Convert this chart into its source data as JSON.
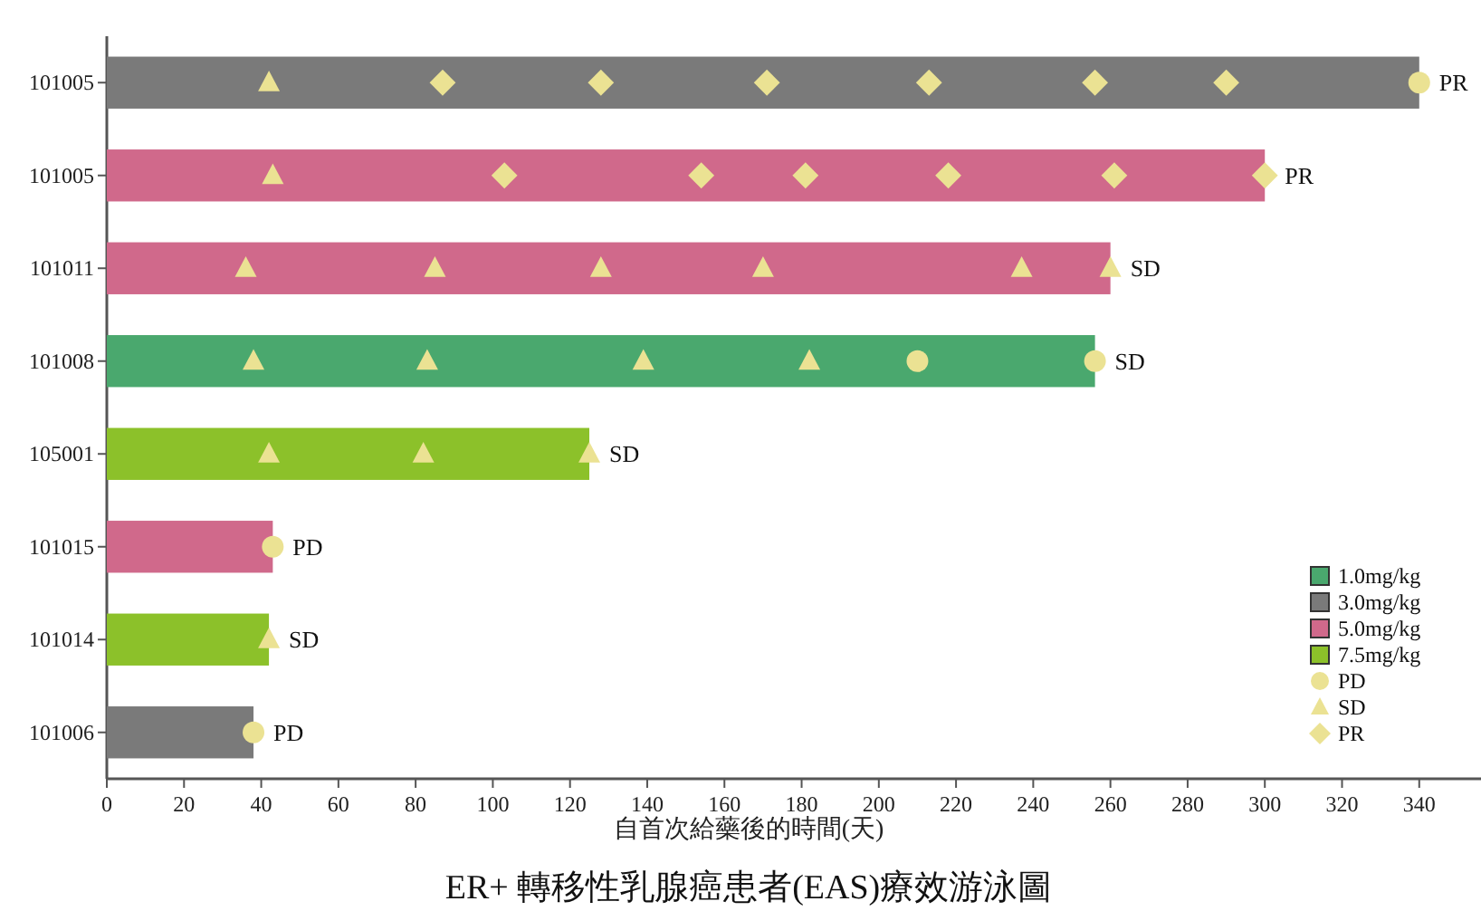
{
  "chart_data": {
    "type": "bar",
    "orientation": "horizontal",
    "title": "ER+ 轉移性乳腺癌患者(EAS)療效游泳圖",
    "xlabel": "自首次給藥後的時間(天)",
    "categories": [
      "101005",
      "101005",
      "101011",
      "101008",
      "105001",
      "101015",
      "101014",
      "101006"
    ],
    "xlim": [
      0,
      356
    ],
    "xticks": [
      0,
      20,
      40,
      60,
      80,
      100,
      120,
      140,
      160,
      180,
      200,
      220,
      240,
      260,
      280,
      300,
      320,
      340
    ],
    "grid": false,
    "legend": "bottom right",
    "series": [
      {
        "name": "1.0mg/kg",
        "color": "#4aa86e",
        "values": [
          null,
          null,
          null,
          256,
          null,
          null,
          null,
          null
        ],
        "value_labels": [
          null,
          null,
          null,
          "SD",
          null,
          null,
          null,
          null
        ]
      },
      {
        "name": "3.0mg/kg",
        "color": "#7a7a7a",
        "values": [
          340,
          null,
          null,
          null,
          null,
          null,
          null,
          38
        ],
        "value_labels": [
          "PR",
          null,
          null,
          null,
          null,
          null,
          null,
          "PD"
        ]
      },
      {
        "name": "5.0mg/kg",
        "color": "#d0698b",
        "values": [
          null,
          300,
          260,
          null,
          null,
          43,
          null,
          null
        ],
        "value_labels": [
          null,
          "PR",
          "SD",
          null,
          null,
          "PD",
          null,
          null
        ]
      },
      {
        "name": "7.5mg/kg",
        "color": "#8cc12a",
        "values": [
          null,
          null,
          null,
          null,
          125,
          null,
          42,
          null
        ],
        "value_labels": [
          null,
          null,
          null,
          null,
          "SD",
          null,
          "SD",
          null
        ]
      },
      {
        "name": "PD",
        "type": "scatter",
        "marker": "circle",
        "color": "#ebe293",
        "values": [
          340,
          null,
          null,
          210,
          null,
          43,
          null,
          38
        ]
      },
      {
        "type": "scatter",
        "marker": "circle",
        "color": "#ebe293",
        "values": [
          null,
          null,
          null,
          256,
          null,
          null,
          null,
          null
        ]
      },
      {
        "name": "SD",
        "type": "scatter",
        "marker": "triangle",
        "color": "#ebe293",
        "values": [
          42,
          43,
          36,
          38,
          42,
          null,
          42,
          null
        ]
      },
      {
        "type": "scatter",
        "marker": "triangle",
        "color": "#ebe293",
        "values": [
          null,
          null,
          85,
          83,
          82,
          null,
          null,
          null
        ]
      },
      {
        "type": "scatter",
        "marker": "triangle",
        "color": "#ebe293",
        "values": [
          null,
          null,
          128,
          139,
          125,
          null,
          null,
          null
        ]
      },
      {
        "type": "scatter",
        "marker": "triangle",
        "color": "#ebe293",
        "values": [
          null,
          null,
          170,
          182,
          null,
          null,
          null,
          null
        ]
      },
      {
        "type": "scatter",
        "marker": "triangle",
        "color": "#ebe293",
        "values": [
          null,
          null,
          237,
          null,
          null,
          null,
          null,
          null
        ]
      },
      {
        "type": "scatter",
        "marker": "triangle",
        "color": "#ebe293",
        "values": [
          null,
          null,
          260,
          null,
          null,
          null,
          null,
          null
        ]
      },
      {
        "name": "PR",
        "type": "scatter",
        "marker": "diamond",
        "color": "#ebe293",
        "values": [
          87,
          103,
          null,
          null,
          null,
          null,
          null,
          null
        ]
      },
      {
        "type": "scatter",
        "marker": "diamond",
        "color": "#ebe293",
        "values": [
          128,
          154,
          null,
          null,
          null,
          null,
          null,
          null
        ]
      },
      {
        "type": "scatter",
        "marker": "diamond",
        "color": "#ebe293",
        "values": [
          171,
          181,
          null,
          null,
          null,
          null,
          null,
          null
        ]
      },
      {
        "type": "scatter",
        "marker": "diamond",
        "color": "#ebe293",
        "values": [
          213,
          218,
          null,
          null,
          null,
          null,
          null,
          null
        ]
      },
      {
        "type": "scatter",
        "marker": "diamond",
        "color": "#ebe293",
        "values": [
          256,
          261,
          null,
          null,
          null,
          null,
          null,
          null
        ]
      },
      {
        "type": "scatter",
        "marker": "diamond",
        "color": "#ebe293",
        "values": [
          290,
          300,
          null,
          null,
          null,
          null,
          null,
          null
        ]
      }
    ]
  }
}
